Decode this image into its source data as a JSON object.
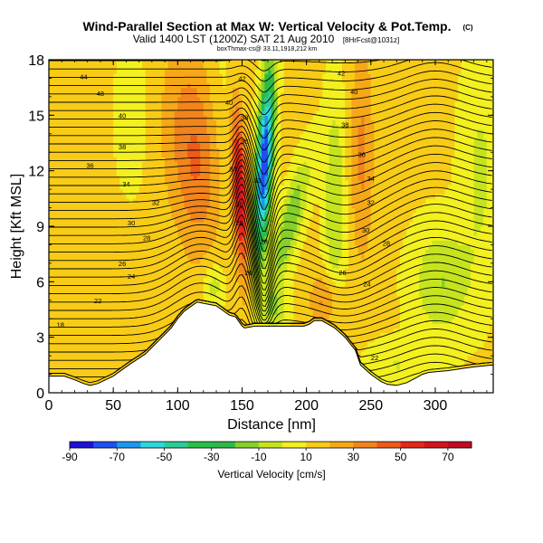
{
  "chart_data": {
    "type": "heatmap",
    "title": "Wind-Parallel Section at Max W: Vertical Velocity & Pot.Temp.",
    "copyright_mark": "(C)",
    "subtitle": "Valid 1400 LST (1200Z) SAT 21 Aug 2010",
    "subtitle_run": "[8HrFcst@1031z]",
    "credit_line": "boxThmax-cs@ 33.11,1918,212 km",
    "xlabel": "Distance [nm]",
    "ylabel": "Height [Kft MSL]",
    "xlim": [
      0,
      345
    ],
    "ylim": [
      0,
      18
    ],
    "x_ticks": [
      "0",
      "50",
      "100",
      "150",
      "200",
      "250",
      "300"
    ],
    "x_tick_values": [
      0,
      50,
      100,
      150,
      200,
      250,
      300
    ],
    "y_ticks": [
      "0",
      "3",
      "6",
      "9",
      "12",
      "15",
      "18"
    ],
    "y_tick_values": [
      0,
      3,
      6,
      9,
      12,
      15,
      18
    ],
    "colorbar": {
      "label": "Vertical Velocity [cm/s]",
      "tick_labels": [
        "-90",
        "-70",
        "-50",
        "-30",
        "-10",
        "10",
        "30",
        "50",
        "70"
      ],
      "tick_values": [
        -90,
        -70,
        -50,
        -30,
        -10,
        10,
        30,
        50,
        70
      ],
      "range": [
        -90,
        80
      ],
      "colors": [
        "#1f10d6",
        "#1f4ff0",
        "#1a98ee",
        "#2ed6dc",
        "#2ccc96",
        "#27c04a",
        "#2fb84a",
        "#86d02a",
        "#c6e41e",
        "#f2f01e",
        "#f8cc16",
        "#f5a818",
        "#f2841c",
        "#ee5a1a",
        "#e4281a",
        "#d2141e",
        "#c00a24"
      ]
    },
    "terrain": {
      "x": [
        0,
        12,
        20,
        27,
        32,
        38,
        50,
        62,
        75,
        85,
        95,
        100,
        105,
        115,
        130,
        140,
        145,
        150,
        152,
        160,
        198,
        202,
        206,
        212,
        222,
        230,
        238,
        242,
        250,
        258,
        263,
        270,
        278,
        285,
        290,
        295,
        310,
        320,
        330,
        345
      ],
      "height_kft": [
        0.9,
        0.9,
        0.7,
        0.5,
        0.4,
        0.5,
        0.9,
        1.5,
        2.1,
        2.8,
        3.5,
        4.0,
        4.4,
        4.9,
        4.7,
        4.2,
        4.1,
        3.6,
        3.5,
        3.6,
        3.6,
        3.7,
        3.9,
        3.9,
        3.5,
        3.0,
        2.3,
        1.5,
        1.0,
        0.6,
        0.45,
        0.4,
        0.55,
        0.8,
        1.0,
        1.1,
        1.2,
        1.3,
        1.4,
        1.5
      ]
    },
    "isentrope_labels": [
      {
        "text": "44",
        "x": 27,
        "y": 17.1
      },
      {
        "text": "42",
        "x": 150,
        "y": 17.0
      },
      {
        "text": "42",
        "x": 227,
        "y": 17.3
      },
      {
        "text": "48",
        "x": 40,
        "y": 16.2
      },
      {
        "text": "40",
        "x": 140,
        "y": 15.7
      },
      {
        "text": "40",
        "x": 237,
        "y": 16.3
      },
      {
        "text": "40",
        "x": 57,
        "y": 15.0
      },
      {
        "text": "38",
        "x": 152,
        "y": 14.9
      },
      {
        "text": "38",
        "x": 230,
        "y": 14.5
      },
      {
        "text": "38",
        "x": 57,
        "y": 13.3
      },
      {
        "text": "36",
        "x": 152,
        "y": 13.6
      },
      {
        "text": "36",
        "x": 243,
        "y": 12.9
      },
      {
        "text": "36",
        "x": 32,
        "y": 12.3
      },
      {
        "text": "34",
        "x": 143,
        "y": 12.1
      },
      {
        "text": "34",
        "x": 250,
        "y": 11.6
      },
      {
        "text": "34",
        "x": 60,
        "y": 11.3
      },
      {
        "text": "33",
        "x": 162,
        "y": 11.5
      },
      {
        "text": "32",
        "x": 83,
        "y": 10.3
      },
      {
        "text": "32",
        "x": 250,
        "y": 10.3
      },
      {
        "text": "30",
        "x": 148,
        "y": 10.2
      },
      {
        "text": "30",
        "x": 64,
        "y": 9.2
      },
      {
        "text": "28",
        "x": 148,
        "y": 9.2
      },
      {
        "text": "30",
        "x": 246,
        "y": 8.8
      },
      {
        "text": "28",
        "x": 76,
        "y": 8.4
      },
      {
        "text": "28",
        "x": 167,
        "y": 8.2
      },
      {
        "text": "28",
        "x": 262,
        "y": 8.1
      },
      {
        "text": "26",
        "x": 57,
        "y": 7.0
      },
      {
        "text": "26",
        "x": 155,
        "y": 6.5
      },
      {
        "text": "26",
        "x": 228,
        "y": 6.5
      },
      {
        "text": "24",
        "x": 64,
        "y": 6.3
      },
      {
        "text": "24",
        "x": 247,
        "y": 5.9
      },
      {
        "text": "22",
        "x": 38,
        "y": 5.0
      },
      {
        "text": "18",
        "x": 9,
        "y": 3.7
      },
      {
        "text": "22",
        "x": 253,
        "y": 1.9
      }
    ]
  }
}
